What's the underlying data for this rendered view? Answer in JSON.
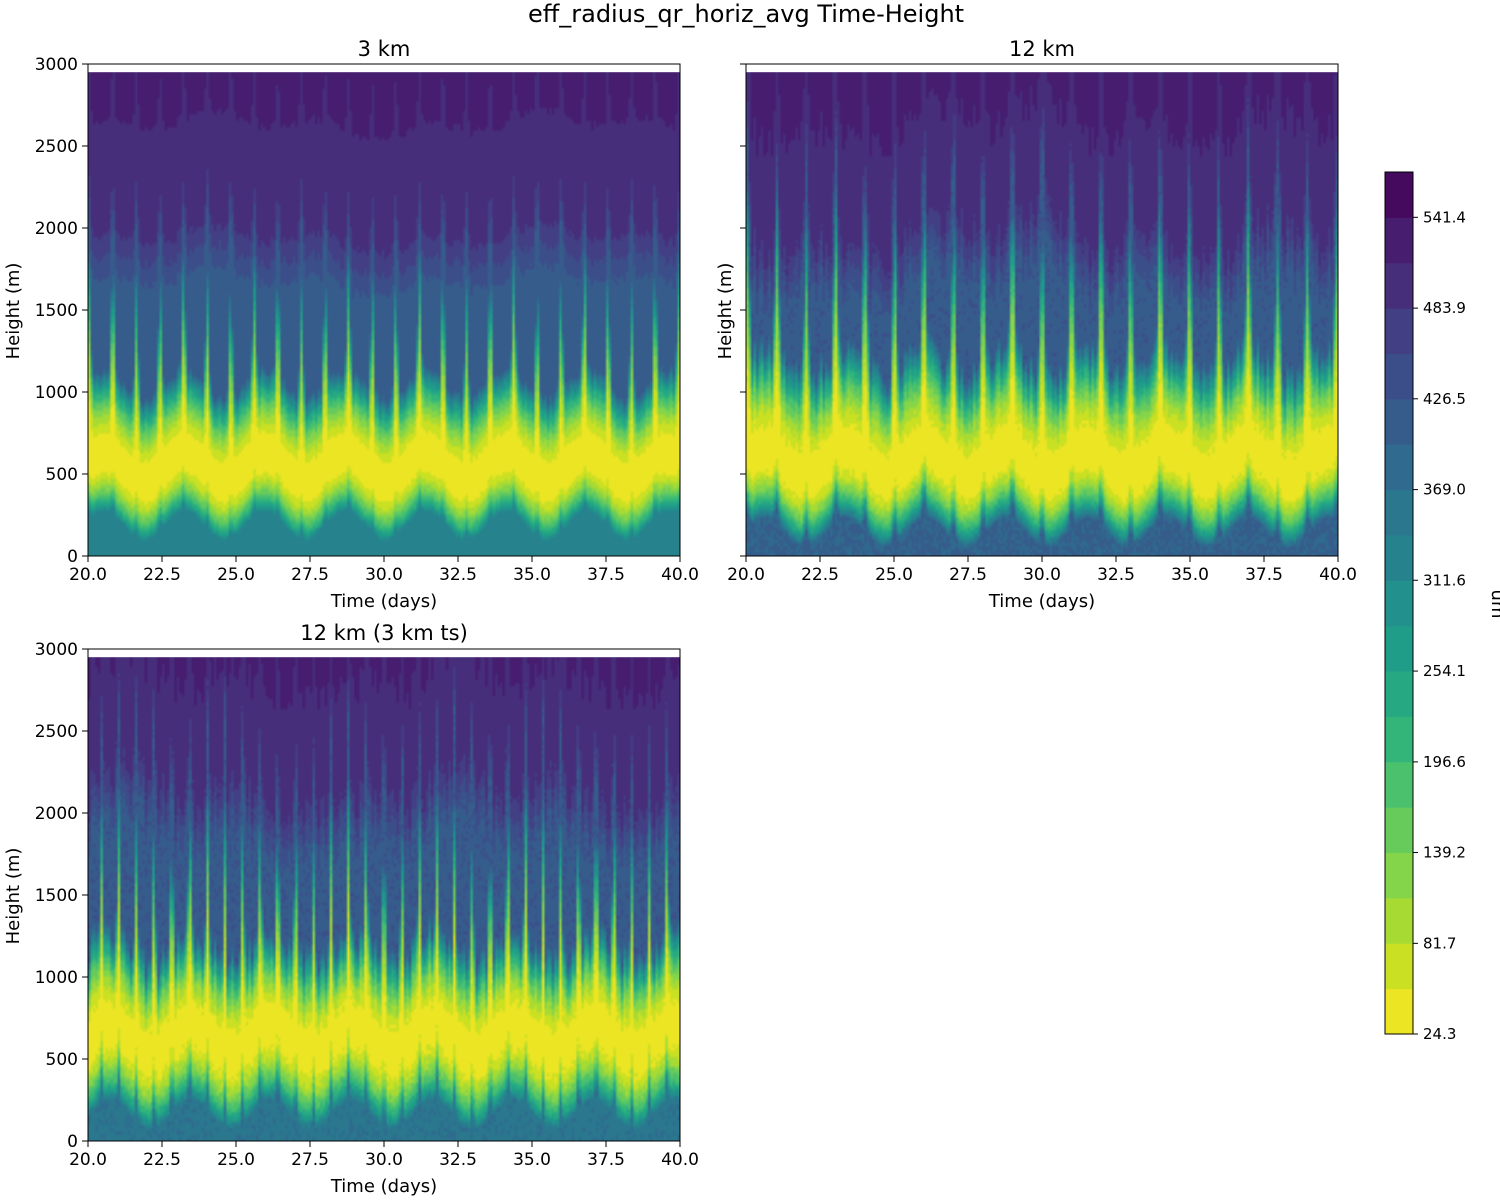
{
  "figure": {
    "suptitle": "eff_radius_qr_horiz_avg Time-Height"
  },
  "colorbar": {
    "label": "um",
    "ticks": [
      "541.4",
      "483.9",
      "426.5",
      "369.0",
      "311.6",
      "254.1",
      "196.6",
      "139.2",
      "81.7",
      "24.3"
    ],
    "tick_values": [
      541.4,
      483.9,
      426.5,
      369.0,
      311.6,
      254.1,
      196.6,
      139.2,
      81.7,
      24.3
    ],
    "range": [
      24.3,
      570.1
    ],
    "levels": 19,
    "colormap": "viridis_r",
    "colors": [
      "#fde725",
      "#c2df23",
      "#86d549",
      "#52c569",
      "#2ab07f",
      "#1e9b8a",
      "#25858e",
      "#2d708e",
      "#38588c",
      "#433e85",
      "#482173",
      "#440154"
    ]
  },
  "chart_data": [
    {
      "type": "heatmap",
      "title": "3 km",
      "xlabel": "Time (days)",
      "ylabel": "Height (m)",
      "xlim": [
        20.0,
        40.0
      ],
      "ylim": [
        0,
        3000
      ],
      "data_top": 2950,
      "x_ticks": [
        "20.0",
        "22.5",
        "25.0",
        "27.5",
        "30.0",
        "32.5",
        "35.0",
        "37.5",
        "40.0"
      ],
      "y_ticks": [
        "0",
        "500",
        "1000",
        "1500",
        "2000",
        "2500",
        "3000"
      ],
      "z_units": "um",
      "profile": {
        "min_value": 24.3,
        "min_height_m": 520,
        "surface_value_um": 330,
        "top_value_um": 500,
        "peak_spread_m": 320,
        "upper_spread_m": 900,
        "cycle_period_days": 0.8,
        "cloud_top_range_m": [
          1900,
          2450
        ],
        "variability": 0.25
      }
    },
    {
      "type": "heatmap",
      "title": "12 km",
      "xlabel": "Time (days)",
      "ylabel": "Height (m)",
      "xlim": [
        20.0,
        40.0
      ],
      "ylim": [
        0,
        3000
      ],
      "data_top": 2950,
      "x_ticks": [
        "20.0",
        "22.5",
        "25.0",
        "27.5",
        "30.0",
        "32.5",
        "35.0",
        "37.5",
        "40.0"
      ],
      "y_ticks": [
        "0",
        "500",
        "1000",
        "1500",
        "2000",
        "2500",
        "3000"
      ],
      "z_units": "um",
      "profile": {
        "min_value": 24.3,
        "min_height_m": 540,
        "surface_value_um": 400,
        "top_value_um": 500,
        "peak_spread_m": 380,
        "upper_spread_m": 1100,
        "cycle_period_days": 1.0,
        "cloud_top_range_m": [
          1800,
          2900
        ],
        "variability": 0.55
      }
    },
    {
      "type": "heatmap",
      "title": "12 km (3 km ts)",
      "xlabel": "Time (days)",
      "ylabel": "Height (m)",
      "xlim": [
        20.0,
        40.0
      ],
      "ylim": [
        0,
        3000
      ],
      "data_top": 2950,
      "x_ticks": [
        "20.0",
        "22.5",
        "25.0",
        "27.5",
        "30.0",
        "32.5",
        "35.0",
        "37.5",
        "40.0"
      ],
      "y_ticks": [
        "0",
        "500",
        "1000",
        "1500",
        "2000",
        "2500",
        "3000"
      ],
      "z_units": "um",
      "profile": {
        "min_value": 24.3,
        "min_height_m": 600,
        "surface_value_um": 360,
        "top_value_um": 500,
        "peak_spread_m": 420,
        "upper_spread_m": 1000,
        "cycle_period_days": 0.6,
        "cloud_top_range_m": [
          2000,
          2950
        ],
        "variability": 0.7
      }
    }
  ]
}
